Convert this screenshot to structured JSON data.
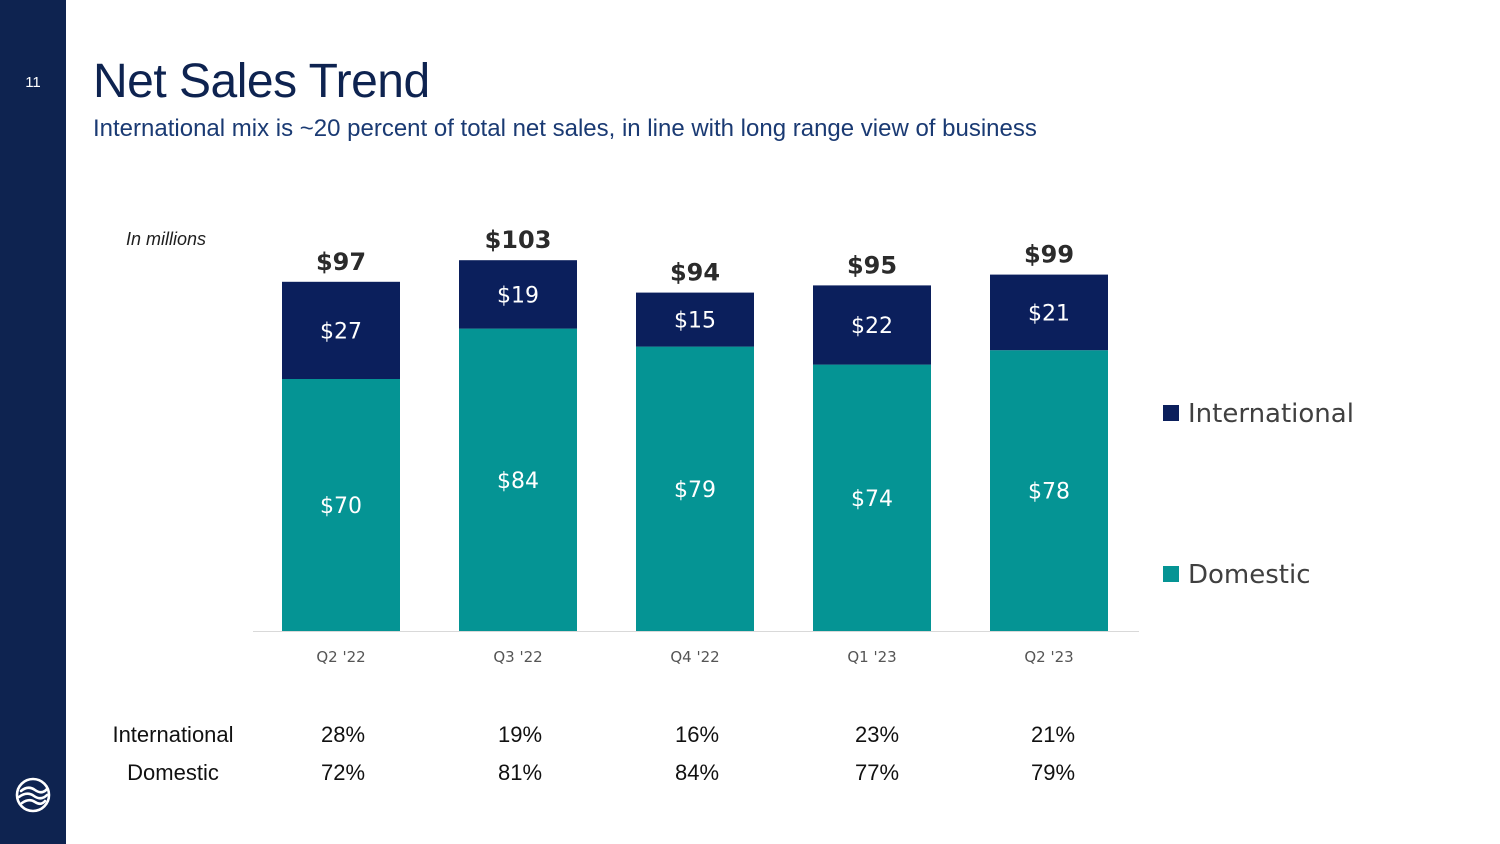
{
  "slide": {
    "page_number": "11",
    "title": "Net Sales Trend",
    "subtitle": "International mix is ~20 percent of total net sales, in line with long range view of business",
    "units_note": "In millions"
  },
  "colors": {
    "sidebar": "#0e2350",
    "international": "#0b1f5c",
    "domestic": "#059494",
    "title": "#0e2350"
  },
  "chart_data": {
    "type": "bar",
    "stacked": true,
    "categories": [
      "Q2 '22",
      "Q3 '22",
      "Q4 '22",
      "Q1 '23",
      "Q2 '23"
    ],
    "series": [
      {
        "name": "Domestic",
        "values": [
          70,
          84,
          79,
          74,
          78
        ],
        "labels": [
          "$70",
          "$84",
          "$79",
          "$74",
          "$78"
        ],
        "color": "#059494"
      },
      {
        "name": "International",
        "values": [
          27,
          19,
          15,
          22,
          21
        ],
        "labels": [
          "$27",
          "$19",
          "$15",
          "$22",
          "$21"
        ],
        "color": "#0b1f5c"
      }
    ],
    "totals": [
      97,
      103,
      94,
      95,
      99
    ],
    "total_labels": [
      "$97",
      "$103",
      "$94",
      "$95",
      "$99"
    ],
    "legend": [
      "International",
      "Domestic"
    ],
    "legend_position": "right",
    "grid": false,
    "ylim": [
      0,
      105
    ]
  },
  "mix_table": {
    "rows": [
      {
        "label": "International",
        "values": [
          "28%",
          "19%",
          "16%",
          "23%",
          "21%"
        ]
      },
      {
        "label": "Domestic",
        "values": [
          "72%",
          "81%",
          "84%",
          "77%",
          "79%"
        ]
      }
    ]
  }
}
